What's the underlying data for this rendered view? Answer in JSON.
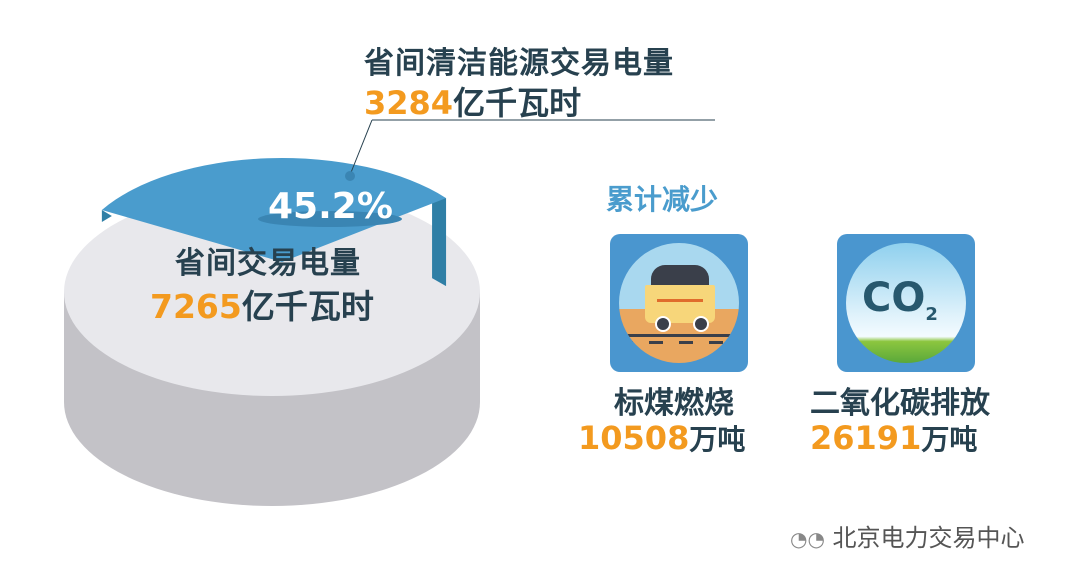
{
  "chart_data": {
    "type": "pie",
    "slices": [
      {
        "name": "省间清洁能源交易电量",
        "value": 3284,
        "unit": "亿千瓦时",
        "percent_label": "45.2%",
        "color": "#4a9ccd"
      },
      {
        "name": "省间交易电量",
        "value": 7265,
        "unit": "亿千瓦时",
        "color": "#e8e8ec"
      }
    ]
  },
  "callout": {
    "title": "省间清洁能源交易电量",
    "value": "3284",
    "unit": "亿千瓦时"
  },
  "pie_label": {
    "percent": "45.2%",
    "title": "省间交易电量",
    "value": "7265",
    "unit": "亿千瓦时"
  },
  "reduction": {
    "heading": "累计减少",
    "items": [
      {
        "label": "标煤燃烧",
        "value": "10508",
        "unit": "万吨",
        "icon": "coal-cart-icon"
      },
      {
        "label": "二氧化碳排放",
        "value": "26191",
        "unit": "万吨",
        "icon": "co2-icon",
        "icon_text": "CO",
        "icon_sub": "2"
      }
    ]
  },
  "watermark": "北京电力交易中心",
  "colors": {
    "accent_blue": "#4a9ccd",
    "orange": "#f39a1f",
    "dark_text": "#27414f"
  }
}
